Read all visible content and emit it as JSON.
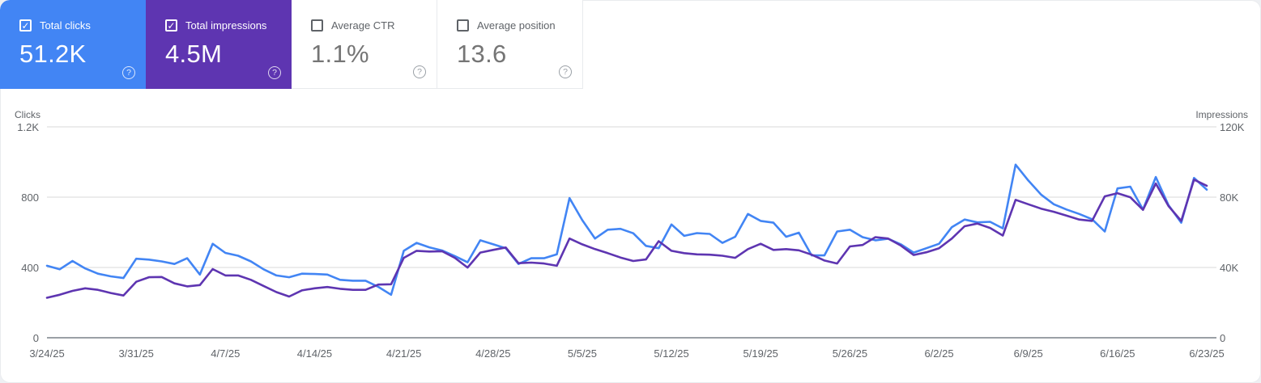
{
  "icons": {
    "check": "✓",
    "help": "?"
  },
  "colors": {
    "clicks": "#4285f4",
    "impressions": "#5e35b1",
    "card_clicks_bg": "#4285f4",
    "card_impressions_bg": "#5e35b1"
  },
  "cards": [
    {
      "id": "total-clicks",
      "label": "Total clicks",
      "value": "51.2K",
      "checked": true
    },
    {
      "id": "total-impressions",
      "label": "Total impressions",
      "value": "4.5M",
      "checked": true
    },
    {
      "id": "average-ctr",
      "label": "Average CTR",
      "value": "1.1%",
      "checked": false
    },
    {
      "id": "average-position",
      "label": "Average position",
      "value": "13.6",
      "checked": false
    }
  ],
  "chart": {
    "left_axis": {
      "title": "Clicks",
      "ticks": [
        "1.2K",
        "800",
        "400",
        "0"
      ]
    },
    "right_axis": {
      "title": "Impressions",
      "ticks": [
        "120K",
        "80K",
        "40K",
        "0"
      ]
    }
  },
  "chart_data": {
    "type": "line",
    "x_tick_labels": [
      "3/24/25",
      "3/31/25",
      "4/7/25",
      "4/14/25",
      "4/21/25",
      "4/28/25",
      "5/5/25",
      "5/12/25",
      "5/19/25",
      "5/26/25",
      "6/2/25",
      "6/9/25",
      "6/16/25",
      "6/23/25"
    ],
    "x_start_date": "3/24/25",
    "x_end_date": "6/23/25",
    "points_per_week": 7,
    "y_left_label": "Clicks",
    "y_left_max": 1200,
    "y_right_label": "Impressions",
    "y_right_max": 120000,
    "grid": true,
    "legend_position": "none",
    "series": [
      {
        "name": "Clicks",
        "axis": "left",
        "color": "#4285f4",
        "values": [
          405,
          385,
          432,
          390,
          360,
          345,
          335,
          445,
          440,
          430,
          415,
          448,
          355,
          530,
          478,
          462,
          430,
          385,
          350,
          340,
          360,
          358,
          355,
          325,
          320,
          320,
          285,
          240,
          490,
          535,
          510,
          492,
          460,
          425,
          550,
          528,
          505,
          415,
          448,
          448,
          470,
          790,
          665,
          560,
          610,
          615,
          590,
          518,
          505,
          640,
          575,
          591,
          586,
          535,
          570,
          700,
          660,
          650,
          570,
          593,
          464,
          464,
          600,
          610,
          568,
          550,
          559,
          527,
          480,
          505,
          530,
          625,
          668,
          652,
          655,
          618,
          980,
          890,
          810,
          755,
          725,
          700,
          670,
          600,
          845,
          855,
          725,
          910,
          750,
          650,
          905,
          838
        ]
      },
      {
        "name": "Impressions",
        "axis": "right",
        "color": "#5e35b1",
        "values": [
          22300,
          24000,
          26200,
          27700,
          26800,
          25000,
          23600,
          31400,
          34000,
          34100,
          30500,
          28800,
          29500,
          38600,
          35000,
          35000,
          32500,
          29000,
          25500,
          23000,
          26500,
          27700,
          28400,
          27400,
          26800,
          26800,
          29800,
          30000,
          45000,
          49000,
          48600,
          48800,
          45000,
          39500,
          48000,
          49500,
          50900,
          42000,
          42300,
          41800,
          40500,
          56000,
          52700,
          50000,
          47700,
          45200,
          43200,
          44100,
          54500,
          49000,
          47700,
          47000,
          46800,
          46200,
          45000,
          50000,
          53000,
          49500,
          50000,
          49300,
          46800,
          43500,
          41800,
          51500,
          52300,
          56800,
          56000,
          52000,
          46600,
          48200,
          50500,
          56000,
          63000,
          64500,
          62000,
          57700,
          78000,
          75500,
          73000,
          71200,
          69000,
          66800,
          66000,
          80000,
          81800,
          79500,
          72300,
          87300,
          74500,
          66000,
          89500,
          86000
        ]
      }
    ]
  }
}
